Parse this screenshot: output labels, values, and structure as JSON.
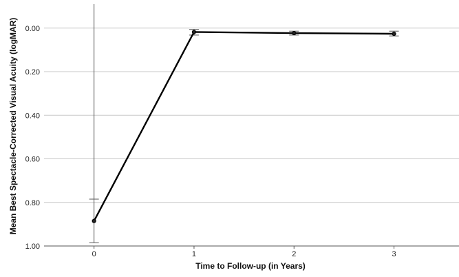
{
  "chart_data": {
    "type": "line",
    "xlabel": "Time to Follow-up (in Years)",
    "ylabel": "Mean Best Spectacle-Corrected Visual Acuity (logMAR)",
    "x_ticks": [
      "0",
      "1",
      "2",
      "3"
    ],
    "y_ticks": [
      "0.00",
      "0.20",
      "0.40",
      "0.60",
      "0.80",
      "1.00"
    ],
    "y_tick_values": [
      0.0,
      0.2,
      0.4,
      0.6,
      0.8,
      1.0
    ],
    "ylim": [
      -0.11,
      1.0
    ],
    "y_inverted": true,
    "xlim": [
      -0.5,
      3.65
    ],
    "grid": "horizontal",
    "series": [
      {
        "x": [
          0,
          1,
          2,
          3
        ],
        "values": [
          0.885,
          0.018,
          0.023,
          0.026
        ],
        "error_low": [
          0.985,
          0.032,
          0.032,
          0.036
        ],
        "error_high": [
          0.785,
          0.006,
          0.014,
          0.014
        ],
        "color": "#000000"
      }
    ],
    "error_bar_color": "#555555",
    "grid_color": "#c8c8c8"
  }
}
